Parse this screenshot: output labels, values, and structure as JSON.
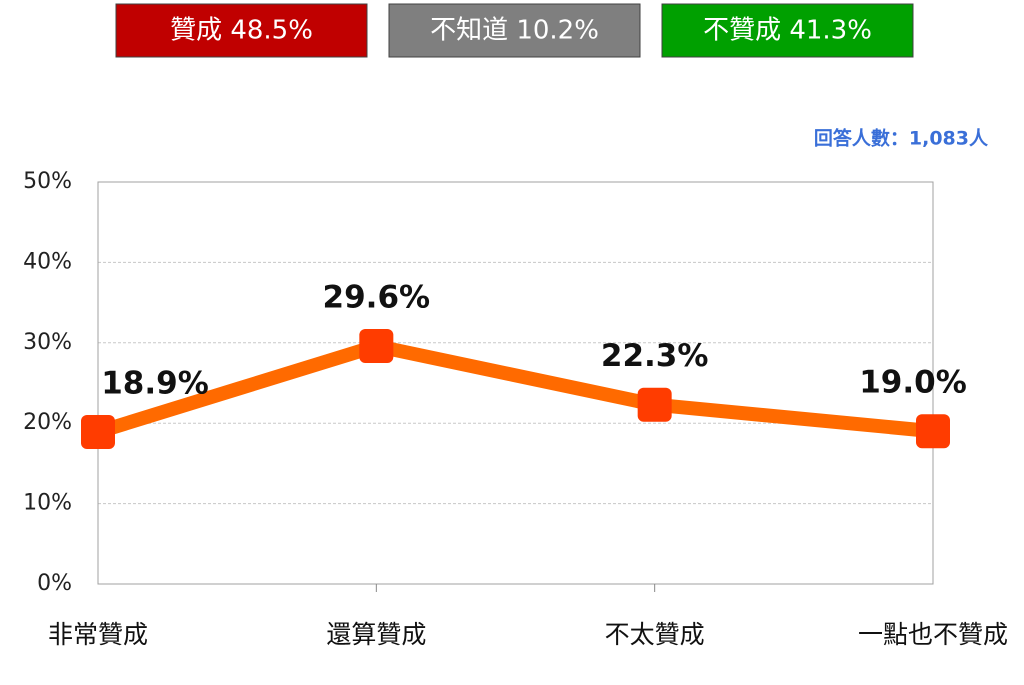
{
  "summary": [
    {
      "text": "贊成 48.5%",
      "color": "#c00000"
    },
    {
      "text": "不知道 10.2%",
      "color": "#7f7f7f"
    },
    {
      "text": "不贊成 41.3%",
      "color": "#00a000"
    }
  ],
  "chart_data": {
    "type": "line",
    "annotation": "回答人數：1,083人",
    "categories": [
      "非常贊成",
      "還算贊成",
      "不太贊成",
      "一點也不贊成"
    ],
    "values": [
      18.9,
      29.6,
      22.3,
      19.0
    ],
    "value_labels": [
      "18.9%",
      "29.6%",
      "22.3%",
      "19.0%"
    ],
    "color": "#ff6a00",
    "marker_color": "#ff3c00",
    "ylim": [
      0,
      50
    ],
    "yticks": [
      {
        "value": 0,
        "label": "0%"
      },
      {
        "value": 10,
        "label": "10%"
      },
      {
        "value": 20,
        "label": "20%"
      },
      {
        "value": 30,
        "label": "30%"
      },
      {
        "value": 40,
        "label": "40%"
      },
      {
        "value": 50,
        "label": "50%"
      }
    ],
    "grid": true
  }
}
